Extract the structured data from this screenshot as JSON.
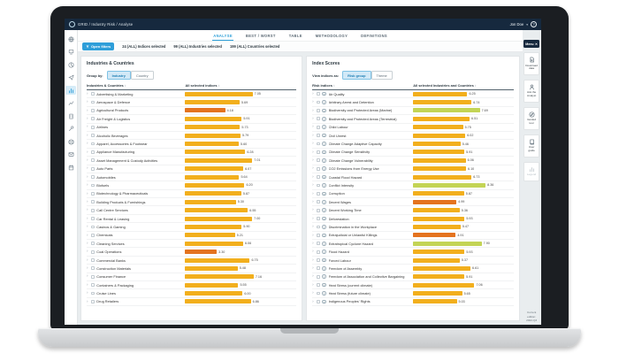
{
  "topbar": {
    "breadcrumb": "GRID / Industry Risk / Analyse",
    "user_name": "Jon Doe",
    "user_caret": "▾",
    "help_glyph": "?"
  },
  "tabs": [
    {
      "label": "ANALYSE",
      "active": true
    },
    {
      "label": "BEST / WORST",
      "active": false
    },
    {
      "label": "TABLE",
      "active": false
    },
    {
      "label": "METHODOLOGY",
      "active": false
    },
    {
      "label": "DEFINITIONS",
      "active": false
    }
  ],
  "filter_bar": {
    "open_filters_label": "Open filters",
    "selections": [
      "24 (ALL) Indices selected",
      "99 (ALL) Industries selected",
      "199 (ALL) Countries selected"
    ]
  },
  "left_rail": {
    "icons": [
      {
        "name": "globe",
        "active": false
      },
      {
        "name": "monitor",
        "active": false
      },
      {
        "name": "pie-chart",
        "active": false
      },
      {
        "name": "send",
        "active": false
      },
      {
        "name": "bar-chart",
        "active": true
      },
      {
        "name": "column-chart",
        "active": false
      },
      {
        "name": "building",
        "active": false
      },
      {
        "name": "tools",
        "active": false
      },
      {
        "name": "globe-grid",
        "active": false
      },
      {
        "name": "mail",
        "active": false
      },
      {
        "name": "calendar",
        "active": false
      }
    ]
  },
  "ui": {
    "sort_glyph": "↕",
    "close_glyph": "✕"
  },
  "colors": {
    "navy": "#16293e",
    "accent_blue": "#2e9ed9",
    "bar_low": "#e4731f",
    "bar_mid": "#f2af1d",
    "bar_high": "#c3d455",
    "low_below": 5.0,
    "high_from": 7.5
  },
  "industries_panel": {
    "title": "Industries & Countries",
    "group_by_label": "Group by:",
    "options": [
      {
        "label": "Industry",
        "active": true
      },
      {
        "label": "Country",
        "active": false
      }
    ],
    "col1": "Industries & Countries",
    "col2": "All selected indices",
    "show_info_icon": false,
    "rows": [
      {
        "label": "Advertising & Marketing",
        "value": 7.05
      },
      {
        "label": "Aerospace & Defence",
        "value": 5.69
      },
      {
        "label": "Agricultural Products",
        "value": 4.18
      },
      {
        "label": "Air Freight & Logistics",
        "value": 5.91
      },
      {
        "label": "Airlines",
        "value": 5.73
      },
      {
        "label": "Alcoholic Beverages",
        "value": 5.79
      },
      {
        "label": "Apparel, Accessories & Footwear",
        "value": 5.6
      },
      {
        "label": "Appliance Manufacturing",
        "value": 6.28
      },
      {
        "label": "Asset Management & Custody Activities",
        "value": 7.01
      },
      {
        "label": "Auto Parts",
        "value": 6.07
      },
      {
        "label": "Automobiles",
        "value": 5.64
      },
      {
        "label": "Biofuels",
        "value": 6.2
      },
      {
        "label": "Biotechnology & Pharmaceuticals",
        "value": 5.87
      },
      {
        "label": "Building Products & Furnishings",
        "value": 5.3
      },
      {
        "label": "Call Centre Services",
        "value": 6.55
      },
      {
        "label": "Car Rental & Leasing",
        "value": 7.0
      },
      {
        "label": "Casinos & Gaming",
        "value": 5.9
      },
      {
        "label": "Chemicals",
        "value": 5.21
      },
      {
        "label": "Cleaning Services",
        "value": 6.06
      },
      {
        "label": "Coal Operations",
        "value": 3.3
      },
      {
        "label": "Commercial Banks",
        "value": 6.75
      },
      {
        "label": "Construction Materials",
        "value": 5.48
      },
      {
        "label": "Consumer Finance",
        "value": 7.16
      },
      {
        "label": "Containers & Packaging",
        "value": 5.55
      },
      {
        "label": "Cruise Lines",
        "value": 6.0
      },
      {
        "label": "Drug Retailers",
        "value": 6.86
      }
    ]
  },
  "indices_panel": {
    "title": "Index Scores",
    "group_by_label": "View indices as:",
    "options": [
      {
        "label": "Risk group",
        "active": true
      },
      {
        "label": "Theme",
        "active": false
      }
    ],
    "col1": "Risk indices",
    "col2": "All selected Industries and Countries",
    "show_info_icon": true,
    "rows": [
      {
        "label": "Air Quality",
        "value": 6.25
      },
      {
        "label": "Arbitrary Arrest and Detention",
        "value": 6.74
      },
      {
        "label": "Biodiversity and Protected Areas (Marine)",
        "value": 7.69
      },
      {
        "label": "Biodiversity and Protected Areas (Terrestrial)",
        "value": 6.51
      },
      {
        "label": "Child Labour",
        "value": 5.75
      },
      {
        "label": "Civil Unrest",
        "value": 6.02
      },
      {
        "label": "Climate Change Adaptive Capacity",
        "value": 5.46
      },
      {
        "label": "Climate Change Sensitivity",
        "value": 5.91
      },
      {
        "label": "Climate Change Vulnerability",
        "value": 6.06
      },
      {
        "label": "CO2 Emissions from Energy Use",
        "value": 6.1
      },
      {
        "label": "Coastal Flood Hazard",
        "value": 6.73
      },
      {
        "label": "Conflict Intensity",
        "value": 8.36
      },
      {
        "label": "Corruption",
        "value": 5.87
      },
      {
        "label": "Decent Wages",
        "value": 4.99
      },
      {
        "label": "Decent Working Time",
        "value": 5.36
      },
      {
        "label": "Deforestation",
        "value": 5.93
      },
      {
        "label": "Discrimination in the Workplace",
        "value": 5.47
      },
      {
        "label": "Extrajudicial or Unlawful Killings",
        "value": 4.91
      },
      {
        "label": "Extratropical Cyclone Hazard",
        "value": 7.9
      },
      {
        "label": "Flood Hazard",
        "value": 5.93
      },
      {
        "label": "Forced Labour",
        "value": 5.37
      },
      {
        "label": "Freedom of Assembly",
        "value": 6.61
      },
      {
        "label": "Freedom of Association and Collective Bargaining",
        "value": 5.91
      },
      {
        "label": "Heat Stress (current climate)",
        "value": 7.06
      },
      {
        "label": "Heat Stress (future climate)",
        "value": 5.65
      },
      {
        "label": "Indigenous Peoples' Rights",
        "value": 5.03
      }
    ]
  },
  "menu_sidebar": {
    "menu_label": "Menu",
    "items": [
      {
        "label": "Download data",
        "icon": "spreadsheet",
        "disabled": false
      },
      {
        "label": "Ask the Analyst",
        "icon": "person",
        "disabled": false
      },
      {
        "label": "Guided tour",
        "icon": "compass",
        "disabled": false
      },
      {
        "label": "User guide",
        "icon": "book",
        "disabled": false
      },
      {
        "label": "Legend",
        "icon": "legend",
        "disabled": true
      }
    ],
    "edition_label": "Current edition:",
    "edition_value": "2022-Q3"
  }
}
